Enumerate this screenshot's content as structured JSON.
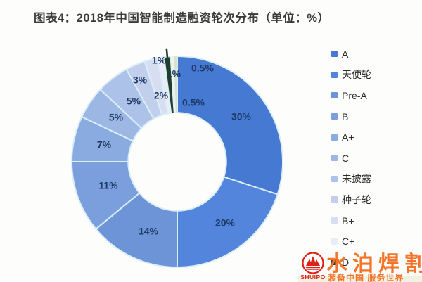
{
  "page": {
    "background": "#fdfdfc"
  },
  "title": "图表4：2018年中国智能制造融资轮次分布（单位：%）",
  "chart_data": {
    "type": "pie",
    "subtype": "donut",
    "title": "2018年中国智能制造融资轮次分布",
    "unit": "%",
    "start_angle_deg": 0,
    "clockwise": true,
    "inner_radius_ratio": 0.465,
    "legend_position": "right",
    "label_color": "#1e3a66",
    "separator_color": "#daeef8",
    "slices": [
      {
        "name": "A",
        "value": 30,
        "label": "30%",
        "color": "#4679d2",
        "label_xy": [
          253,
          107
        ]
      },
      {
        "name": "天使轮",
        "value": 20,
        "label": "20%",
        "color": "#5385dc",
        "label_xy": [
          230,
          258
        ]
      },
      {
        "name": "Pre-A",
        "value": 14,
        "label": "14%",
        "color": "#6e94d8",
        "label_xy": [
          121,
          270
        ]
      },
      {
        "name": "B",
        "value": 11,
        "label": "11%",
        "color": "#7b9fdc",
        "label_xy": [
          64,
          205
        ]
      },
      {
        "name": "A+",
        "value": 7,
        "label": "7%",
        "color": "#8aabdf",
        "label_xy": [
          58,
          147
        ]
      },
      {
        "name": "C",
        "value": 5,
        "label": "5%",
        "color": "#9db7e4",
        "label_xy": [
          75,
          108
        ]
      },
      {
        "name": "未披露",
        "value": 5,
        "label": "5%",
        "color": "#adc2e8",
        "label_xy": [
          100,
          85
        ]
      },
      {
        "name": "种子轮",
        "value": 3,
        "label": "3%",
        "color": "#c2cfec",
        "label_xy": [
          109,
          55
        ]
      },
      {
        "name": "B+",
        "value": 2,
        "label": "2%",
        "color": "#d8def2",
        "label_xy": [
          139,
          77
        ]
      },
      {
        "name": "C+",
        "value": 1,
        "label": "1%",
        "color": "#eaecf7",
        "label_xy": [
          136,
          27
        ]
      },
      {
        "name": "D",
        "value": 1,
        "label": "1%",
        "color": "#1f3f2b",
        "label_xy": [
          157,
          46
        ],
        "leader": true
      },
      {
        "name": "",
        "value": 0.5,
        "label": "0.5%",
        "color": "#f4f3ea",
        "label_xy": [
          198,
          38
        ]
      },
      {
        "name": "",
        "value": 0.5,
        "label": "0.5%",
        "color": "#d7e3cd",
        "label_xy": [
          185,
          87
        ]
      }
    ],
    "legend": [
      {
        "label": "A",
        "color": "#4679d2"
      },
      {
        "label": "天使轮",
        "color": "#5385dc"
      },
      {
        "label": "Pre-A",
        "color": "#6e94d8"
      },
      {
        "label": "B",
        "color": "#7b9fdc"
      },
      {
        "label": "A+",
        "color": "#8aabdf"
      },
      {
        "label": "C",
        "color": "#9db7e4"
      },
      {
        "label": "未披露",
        "color": "#adc2e8"
      },
      {
        "label": "种子轮",
        "color": "#c2cfec"
      },
      {
        "label": "B+",
        "color": "#d8def2"
      },
      {
        "label": "C+",
        "color": "#eaecf7"
      },
      {
        "label": "D",
        "color": "#1f3f2b"
      }
    ]
  },
  "watermark": {
    "brand": "水泊焊割",
    "brand_latin": "SHUIPO",
    "tagline": "装备中国 服务世界",
    "orange": "#f4742a",
    "red": "#dd2218"
  }
}
